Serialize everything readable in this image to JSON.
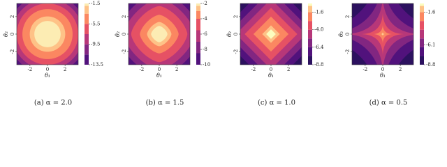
{
  "chart_data": [
    {
      "type": "contour",
      "caption": "(a) α = 2.0",
      "alpha": 2,
      "xlabel": "θ₁",
      "ylabel": "θ₂",
      "xlim": [
        -3.5,
        3.5
      ],
      "ylim": [
        -3.5,
        3.5
      ],
      "xticks": [
        -2,
        0,
        2
      ],
      "yticks": [
        -2,
        0,
        2
      ],
      "cbar_lim": [
        -13.5,
        -1.5
      ],
      "cbar_ticks": [
        -1.5,
        -5.5,
        -9.5,
        -13.5
      ],
      "levels": [
        -13.5,
        -11.5,
        -9.5,
        -7.5,
        -5.5,
        -3.5
      ],
      "colors": [
        "#51127c",
        "#822681",
        "#b73779",
        "#e65164",
        "#fb8761",
        "#fec287"
      ],
      "top_color": "#fcecb3"
    },
    {
      "type": "contour",
      "caption": "(b) α = 1.5",
      "alpha": 1.5,
      "xlabel": "θ₁",
      "ylabel": "θ₂",
      "xlim": [
        -3.5,
        3.5
      ],
      "ylim": [
        -3.5,
        3.5
      ],
      "xticks": [
        -2,
        0,
        2
      ],
      "yticks": [
        -2,
        0,
        2
      ],
      "cbar_lim": [
        -10,
        -2
      ],
      "cbar_ticks": [
        -2,
        -4,
        -6,
        -8,
        -10
      ],
      "levels": [
        -10,
        -8.5,
        -7,
        -5.5,
        -4,
        -3
      ],
      "colors": [
        "#51127c",
        "#822681",
        "#b73779",
        "#e65164",
        "#fb8761",
        "#fec287"
      ],
      "top_color": "#fcecb3"
    },
    {
      "type": "contour",
      "caption": "(c) α = 1.0",
      "alpha": 1,
      "xlabel": "θ₁",
      "ylabel": "θ₂",
      "xlim": [
        -3.5,
        3.5
      ],
      "ylim": [
        -3.5,
        3.5
      ],
      "xticks": [
        -2,
        0,
        2
      ],
      "yticks": [
        -2,
        0,
        2
      ],
      "cbar_lim": [
        -8.8,
        -0.4
      ],
      "cbar_ticks": [
        {
          "value": -1.6,
          "label": "-1.6"
        },
        {
          "value": -4,
          "label": "-4.0"
        },
        {
          "value": -6.4,
          "label": "-6.4"
        },
        {
          "value": -8.8,
          "label": "-8.8"
        }
      ],
      "levels": [
        -8.8,
        -7.6,
        -6.4,
        -5.2,
        -4,
        -2.8,
        -1.6
      ],
      "colors": [
        "#2c115f",
        "#51127c",
        "#822681",
        "#b73779",
        "#e65164",
        "#fb8761",
        "#fec287"
      ],
      "top_color": "#fcfdbf"
    },
    {
      "type": "contour",
      "caption": "(d) α = 0.5",
      "alpha": 0.5,
      "xlabel": "θ₁",
      "ylabel": "θ₂",
      "xlim": [
        -3.5,
        3.5
      ],
      "ylim": [
        -3.5,
        3.5
      ],
      "xticks": [
        -2,
        0,
        2
      ],
      "yticks": [
        -2,
        0,
        2
      ],
      "cbar_lim": [
        -8.8,
        -0.4
      ],
      "cbar_ticks": [
        -1.6,
        -6.1,
        -8.8
      ],
      "levels": [
        -8.8,
        -7.6,
        -6.4,
        -5.2,
        -4,
        -2.8,
        -1.6
      ],
      "colors": [
        "#2c115f",
        "#51127c",
        "#822681",
        "#b73779",
        "#e65164",
        "#fb8761",
        "#fec287"
      ],
      "top_color": "#fcfdbf"
    }
  ]
}
